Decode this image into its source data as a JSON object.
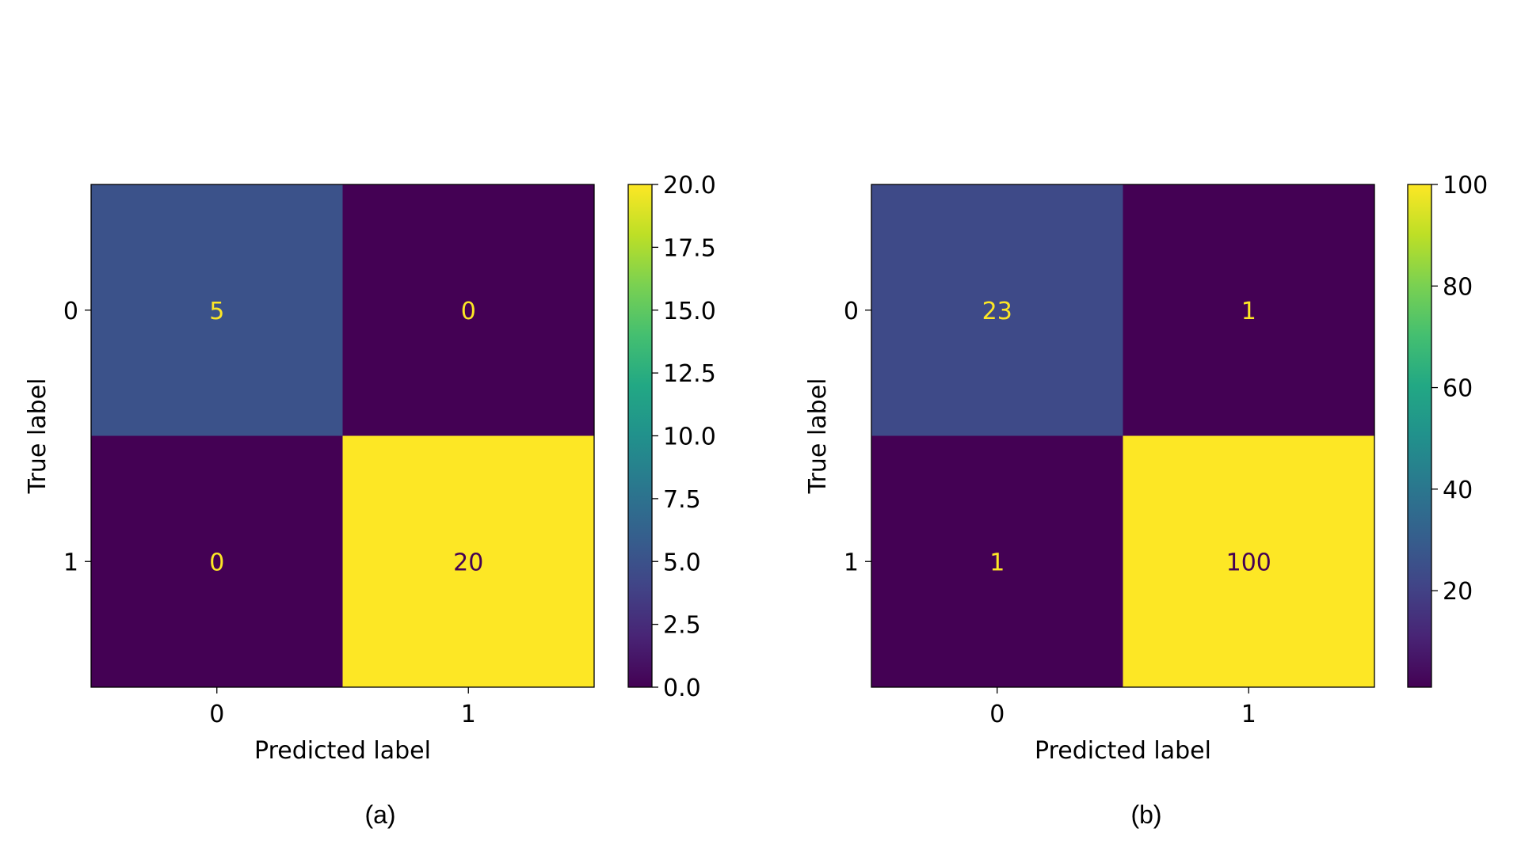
{
  "chart_data": [
    {
      "type": "heatmap",
      "caption": "(a)",
      "xlabel": "Predicted label",
      "ylabel": "True label",
      "x_categories": [
        "0",
        "1"
      ],
      "y_categories": [
        "0",
        "1"
      ],
      "values": [
        [
          5,
          0
        ],
        [
          0,
          20
        ]
      ],
      "value_labels": [
        [
          "5",
          "0"
        ],
        [
          "0",
          "20"
        ]
      ],
      "colorbar": {
        "range": [
          0,
          20
        ],
        "ticks": [
          0,
          2.5,
          5,
          7.5,
          10,
          12.5,
          15,
          17.5,
          20
        ],
        "tick_labels": [
          "0.0",
          "2.5",
          "5.0",
          "7.5",
          "10.0",
          "12.5",
          "15.0",
          "17.5",
          "20.0"
        ]
      },
      "colormap": "viridis"
    },
    {
      "type": "heatmap",
      "caption": "(b)",
      "xlabel": "Predicted label",
      "ylabel": "True label",
      "x_categories": [
        "0",
        "1"
      ],
      "y_categories": [
        "0",
        "1"
      ],
      "values": [
        [
          23,
          1
        ],
        [
          1,
          100
        ]
      ],
      "value_labels": [
        [
          "23",
          "1"
        ],
        [
          "1",
          "100"
        ]
      ],
      "colorbar": {
        "range": [
          1,
          100
        ],
        "ticks": [
          20,
          40,
          60,
          80,
          100
        ],
        "tick_labels": [
          "20",
          "40",
          "60",
          "80",
          "100"
        ]
      },
      "colormap": "viridis"
    }
  ],
  "colors": {
    "background": "#ffffff",
    "axis": "#000000",
    "viridis_low": "#440154",
    "viridis_high": "#fde725"
  }
}
